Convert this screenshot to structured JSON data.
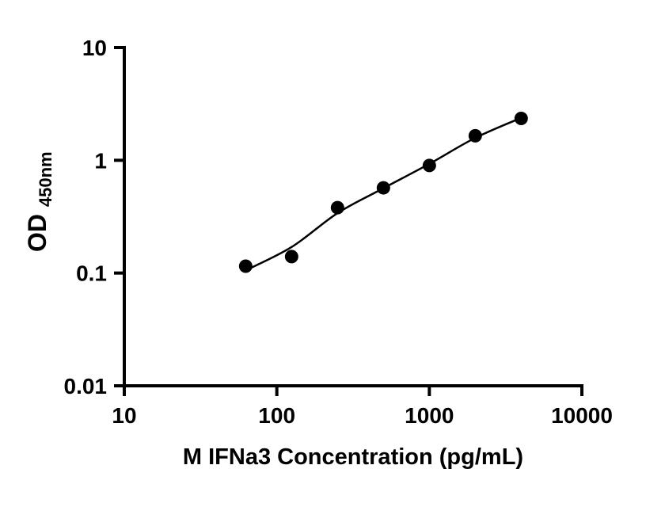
{
  "chart_data": {
    "type": "scatter",
    "title": "",
    "xlabel": "M IFNa3 Concentration (pg/mL)",
    "ylabel": "OD",
    "ylabel_subscript": "450nm",
    "x_scale": "log",
    "y_scale": "log",
    "xlim": [
      10,
      10000
    ],
    "ylim": [
      0.01,
      10
    ],
    "x_ticks": [
      10,
      100,
      1000,
      10000
    ],
    "x_tick_labels": [
      "10",
      "100",
      "1000",
      "10000"
    ],
    "y_ticks": [
      0.01,
      0.1,
      1,
      10
    ],
    "y_tick_labels": [
      "0.01",
      "0.1",
      "1",
      "10"
    ],
    "grid": false,
    "legend": null,
    "series": [
      {
        "name": "standard-points",
        "type": "scatter",
        "marker": "filled-circle",
        "color": "#000000",
        "x": [
          62.5,
          125,
          250,
          500,
          1000,
          2000,
          4000
        ],
        "y": [
          0.115,
          0.14,
          0.38,
          0.57,
          0.9,
          1.65,
          2.35
        ]
      },
      {
        "name": "fitted-curve",
        "type": "line",
        "color": "#000000",
        "x": [
          62,
          125,
          250,
          500,
          1000,
          2000,
          4000
        ],
        "y": [
          0.105,
          0.17,
          0.34,
          0.565,
          0.93,
          1.58,
          2.38
        ]
      }
    ]
  },
  "colors": {
    "axis": "#000000",
    "marker": "#000000",
    "background": "#ffffff"
  }
}
